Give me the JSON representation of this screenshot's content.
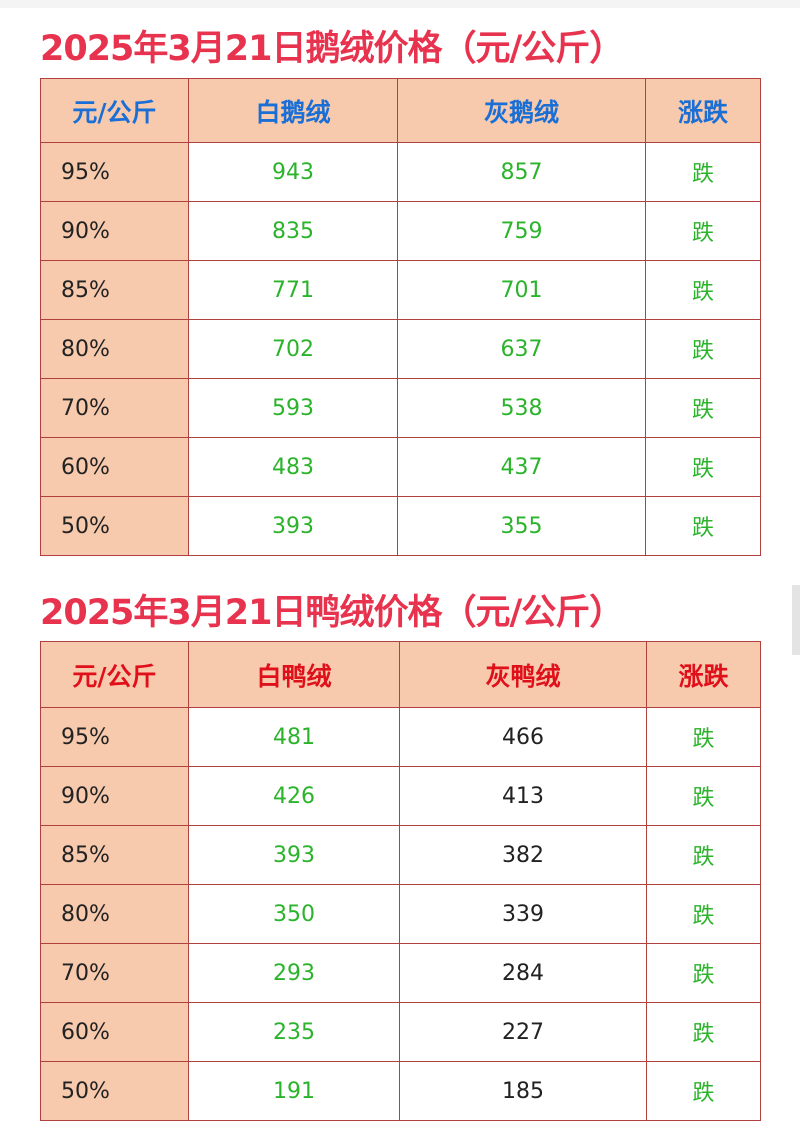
{
  "goose": {
    "title": "2025年3月21日鹅绒价格（元/公斤）",
    "headers": [
      "元/公斤",
      "白鹅绒",
      "灰鹅绒",
      "涨跌"
    ],
    "rows": [
      [
        "95%",
        "943",
        "857",
        "跌"
      ],
      [
        "90%",
        "835",
        "759",
        "跌"
      ],
      [
        "85%",
        "771",
        "701",
        "跌"
      ],
      [
        "80%",
        "702",
        "637",
        "跌"
      ],
      [
        "70%",
        "593",
        "538",
        "跌"
      ],
      [
        "60%",
        "483",
        "437",
        "跌"
      ],
      [
        "50%",
        "393",
        "355",
        "跌"
      ]
    ],
    "header_color": "#1a6fd6"
  },
  "duck": {
    "title": "2025年3月21日鸭绒价格（元/公斤）",
    "headers": [
      "元/公斤",
      "白鸭绒",
      "灰鸭绒",
      "涨跌"
    ],
    "rows": [
      [
        "95%",
        "481",
        "466",
        "跌"
      ],
      [
        "90%",
        "426",
        "413",
        "跌"
      ],
      [
        "85%",
        "393",
        "382",
        "跌"
      ],
      [
        "80%",
        "350",
        "339",
        "跌"
      ],
      [
        "70%",
        "293",
        "284",
        "跌"
      ],
      [
        "60%",
        "235",
        "227",
        "跌"
      ],
      [
        "50%",
        "191",
        "185",
        "跌"
      ]
    ],
    "header_color": "#e0101a"
  },
  "colors": {
    "title": "#e8334f",
    "down": "#2bb32b",
    "header_bg": "#f7c9ad"
  }
}
